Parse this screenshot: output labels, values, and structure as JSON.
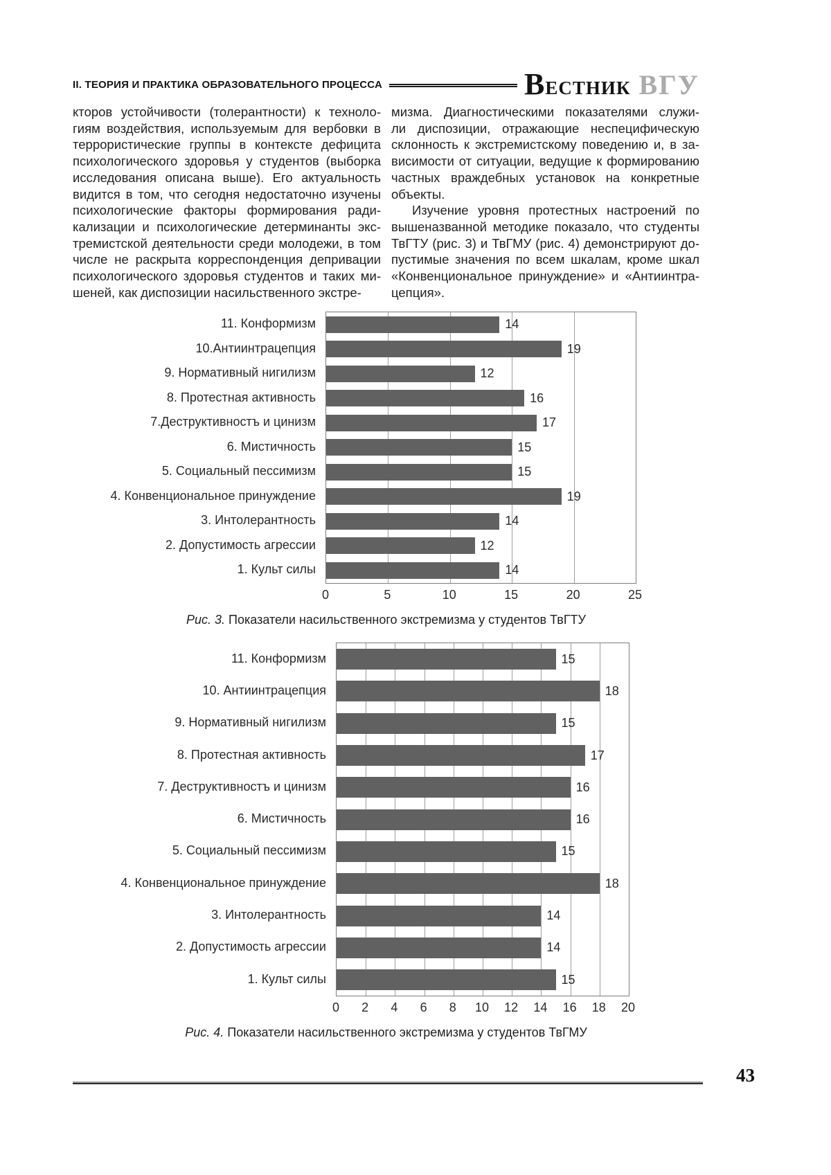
{
  "header": {
    "section_title": "II. ТЕОРИЯ И ПРАКТИКА ОБРАЗОВАТЕЛЬНОГО ПРОЦЕССА",
    "journal_big_cap": "В",
    "journal_rest": "ЕСТНИК",
    "journal_suffix": "ВГУ"
  },
  "article": {
    "left_column": "кторов устойчивости (толерантности) к техноло-\nгиям воздействия, используемым для вербовки в\nтеррористические группы в контексте дефицита\nпсихологического здоровья у студентов (выборка\nисследования описана выше). Его актуальность\nвидится в том, что сегодня недостаточно изучены\nпсихологические факторы формирования ради-\nкализации и психологические детерминанты экс-\nтремистской деятельности среди молодежи, в том\nчисле не раскрыта корреспонденция депривации\nпсихологического здоровья студентов и таких ми-\nшеней, как диспозиции насильственного экстре-",
    "right_column_p1": "мизма. Диагностическими показателями служи-\nли диспозиции, отражающие неспецифическую\nсклонность к экстремистскому поведению и, в за-\nвисимости от ситуации, ведущие к формированию\nчастных враждебных установок на конкретные\nобъекты.",
    "right_column_p2": "Изучение уровня протестных настроений по\nвышеназванной методике показало, что студенты\nТвГТУ (рис. 3) и ТвГМУ (рис. 4) демонстрируют до-\nпустимые значения по всем шкалам, кроме шкал\n«Конвенциональное принуждение» и «Антиинтра-\nцепция»."
  },
  "chart_data": [
    {
      "type": "bar",
      "orientation": "horizontal",
      "title": "",
      "categories": [
        "11. Конформизм",
        "10.Антиинтрацепция",
        "9. Нормативный нигилизм",
        "8. Протестная активность",
        "7.Деструктивностъ и цинизм",
        "6. Мистичность",
        "5. Социальный пессимизм",
        "4. Конвенциональное принуждение",
        "3. Интолерантность",
        "2. Допустимость агрессии",
        "1. Культ силы"
      ],
      "values": [
        14,
        19,
        12,
        16,
        17,
        15,
        15,
        19,
        14,
        12,
        14
      ],
      "xlim": [
        0,
        25
      ],
      "xticks": [
        0,
        5,
        10,
        15,
        20,
        25
      ],
      "grid": true,
      "legend": false,
      "bar_color": "#616161",
      "caption_label": "Рис. 3.",
      "caption_text": "Показатели насильственного экстремизма у студентов ТвГТУ"
    },
    {
      "type": "bar",
      "orientation": "horizontal",
      "title": "",
      "categories": [
        "11. Конформизм",
        "10. Антиинтрацепция",
        "9. Нормативный нигилизм",
        "8. Протестная активность",
        "7. Деструктивностъ и цинизм",
        "6. Мистичность",
        "5. Социальный пессимизм",
        "4. Конвенциональное принуждение",
        "3. Интолерантность",
        "2. Допустимость агрессии",
        "1. Культ силы"
      ],
      "values": [
        15,
        18,
        15,
        17,
        16,
        16,
        15,
        18,
        14,
        14,
        15
      ],
      "xlim": [
        0,
        20
      ],
      "xticks": [
        0,
        2,
        4,
        6,
        8,
        10,
        12,
        14,
        16,
        18,
        20
      ],
      "grid": true,
      "legend": false,
      "bar_color": "#616161",
      "caption_label": "Рис. 4.",
      "caption_text": "Показатели насильственного экстремизма у студентов ТвГМУ"
    }
  ],
  "footer": {
    "page_number": "43"
  }
}
